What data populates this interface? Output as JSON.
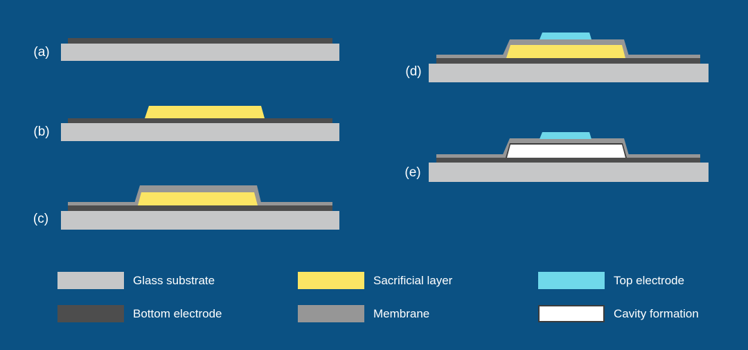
{
  "panels": [
    {
      "id": "a",
      "label": "(a)",
      "layers": [
        "glass-substrate",
        "bottom-electrode"
      ]
    },
    {
      "id": "b",
      "label": "(b)",
      "layers": [
        "glass-substrate",
        "bottom-electrode",
        "sacrificial-layer"
      ]
    },
    {
      "id": "c",
      "label": "(c)",
      "layers": [
        "glass-substrate",
        "bottom-electrode",
        "sacrificial-layer",
        "membrane"
      ]
    },
    {
      "id": "d",
      "label": "(d)",
      "layers": [
        "glass-substrate",
        "bottom-electrode",
        "sacrificial-layer",
        "membrane",
        "top-electrode"
      ]
    },
    {
      "id": "e",
      "label": "(e)",
      "layers": [
        "glass-substrate",
        "bottom-electrode",
        "membrane",
        "top-electrode",
        "cavity-formation"
      ]
    }
  ],
  "colors": {
    "background": "#0B5183",
    "glass_substrate": "#C6C7C8",
    "bottom_electrode": "#4D4D4D",
    "sacrificial_layer": "#FBE564",
    "membrane": "#969696",
    "top_electrode": "#6FD8EA",
    "cavity_formation": "#FFFFFF",
    "cavity_border": "#3C3C3C",
    "text": "#FFFFFF"
  },
  "legend": {
    "items": [
      {
        "label": "Glass substrate",
        "color": "#C6C7C8"
      },
      {
        "label": "Bottom electrode",
        "color": "#4D4D4D"
      },
      {
        "label": "Sacrificial layer",
        "color": "#FBE564"
      },
      {
        "label": "Membrane",
        "color": "#969696"
      },
      {
        "label": "Top electrode",
        "color": "#6FD8EA"
      },
      {
        "label": "Cavity formation",
        "color": "#FFFFFF",
        "border_color": "#3C3C3C"
      }
    ]
  }
}
